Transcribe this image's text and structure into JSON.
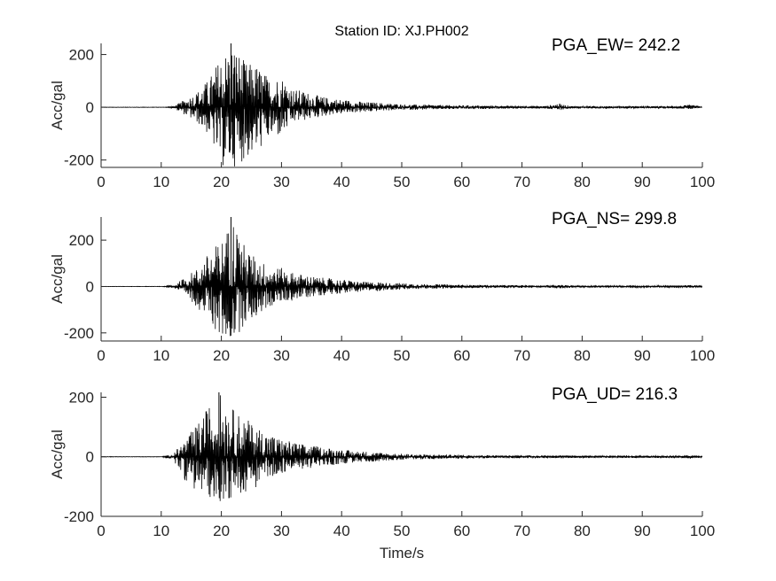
{
  "chart_data": {
    "type": "line",
    "title": "Station ID: XJ.PH002",
    "xlabel": "Time/s",
    "subplots": [
      {
        "annotation": "PGA_EW= 242.2",
        "ylabel": "Acc/gal",
        "xlim": [
          0,
          100
        ],
        "ylim": [
          -228,
          242.2
        ],
        "xticks": [
          0,
          10,
          20,
          30,
          40,
          50,
          60,
          70,
          80,
          90,
          100
        ],
        "yticks": [
          -200,
          0,
          200
        ],
        "time_s": [
          0,
          2,
          4,
          6,
          8,
          10,
          12,
          14,
          16,
          18,
          20,
          22,
          24,
          26,
          28,
          30,
          32,
          34,
          36,
          38,
          40,
          42,
          44,
          46,
          48,
          50,
          52,
          54,
          56,
          58,
          60,
          62,
          64,
          66,
          68,
          70,
          72,
          74,
          76,
          78,
          80,
          82,
          84,
          86,
          88,
          90,
          92,
          94,
          96,
          98,
          100
        ],
        "envelope_max": [
          0,
          0,
          0,
          0,
          0,
          0,
          3,
          30,
          60,
          110,
          200,
          242.2,
          170,
          160,
          110,
          120,
          70,
          60,
          45,
          35,
          30,
          25,
          20,
          18,
          15,
          12,
          10,
          10,
          9,
          8,
          8,
          7,
          7,
          6,
          6,
          6,
          5,
          5,
          15,
          5,
          4,
          4,
          4,
          4,
          4,
          4,
          4,
          4,
          4,
          10,
          3
        ],
        "envelope_min": [
          0,
          0,
          0,
          0,
          0,
          0,
          -3,
          -30,
          -60,
          -110,
          -228,
          -228,
          -200,
          -170,
          -120,
          -110,
          -60,
          -50,
          -40,
          -30,
          -25,
          -20,
          -20,
          -15,
          -12,
          -10,
          -10,
          -9,
          -8,
          -8,
          -7,
          -7,
          -6,
          -6,
          -6,
          -5,
          -5,
          -5,
          -12,
          -5,
          -4,
          -4,
          -4,
          -4,
          -4,
          -4,
          -4,
          -4,
          -4,
          -8,
          -3
        ]
      },
      {
        "annotation": "PGA_NS= 299.8",
        "ylabel": "Acc/gal",
        "xlim": [
          0,
          100
        ],
        "ylim": [
          -235,
          299.8
        ],
        "xticks": [
          0,
          10,
          20,
          30,
          40,
          50,
          60,
          70,
          80,
          90,
          100
        ],
        "yticks": [
          -200,
          0,
          200
        ],
        "time_s": [
          0,
          2,
          4,
          6,
          8,
          10,
          12,
          14,
          16,
          18,
          20,
          22,
          24,
          26,
          28,
          30,
          32,
          34,
          36,
          38,
          40,
          42,
          44,
          46,
          48,
          50,
          52,
          54,
          56,
          58,
          60,
          62,
          64,
          66,
          68,
          70,
          72,
          74,
          76,
          78,
          80,
          82,
          84,
          86,
          88,
          90,
          92,
          94,
          96,
          98,
          100
        ],
        "envelope_max": [
          0,
          0,
          0,
          0,
          0,
          0,
          5,
          40,
          80,
          150,
          200,
          299.8,
          170,
          120,
          90,
          80,
          60,
          50,
          40,
          35,
          30,
          25,
          20,
          20,
          15,
          15,
          12,
          10,
          10,
          9,
          8,
          7,
          7,
          6,
          6,
          6,
          5,
          5,
          10,
          5,
          4,
          4,
          4,
          4,
          4,
          4,
          4,
          4,
          4,
          8,
          3
        ],
        "envelope_min": [
          0,
          0,
          0,
          0,
          0,
          0,
          -5,
          -40,
          -90,
          -150,
          -235,
          -235,
          -160,
          -130,
          -90,
          -70,
          -60,
          -50,
          -40,
          -35,
          -30,
          -25,
          -20,
          -20,
          -15,
          -15,
          -12,
          -10,
          -10,
          -9,
          -8,
          -7,
          -7,
          -6,
          -6,
          -6,
          -5,
          -5,
          -10,
          -5,
          -4,
          -4,
          -4,
          -4,
          -4,
          -4,
          -4,
          -4,
          -4,
          -8,
          -3
        ]
      },
      {
        "annotation": "PGA_UD= 216.3",
        "ylabel": "Acc/gal",
        "xlim": [
          0,
          100
        ],
        "ylim": [
          -200,
          216.3
        ],
        "xticks": [
          0,
          10,
          20,
          30,
          40,
          50,
          60,
          70,
          80,
          90,
          100
        ],
        "yticks": [
          -200,
          0,
          200
        ],
        "time_s": [
          0,
          2,
          4,
          6,
          8,
          10,
          12,
          14,
          16,
          18,
          20,
          22,
          24,
          26,
          28,
          30,
          32,
          34,
          36,
          38,
          40,
          42,
          44,
          46,
          48,
          50,
          52,
          54,
          56,
          58,
          60,
          62,
          64,
          66,
          68,
          70,
          72,
          74,
          76,
          78,
          80,
          82,
          84,
          86,
          88,
          90,
          92,
          94,
          96,
          98,
          100
        ],
        "envelope_max": [
          0,
          0,
          0,
          0,
          0,
          0,
          10,
          60,
          110,
          175,
          216.3,
          160,
          130,
          100,
          80,
          60,
          50,
          40,
          35,
          30,
          25,
          20,
          18,
          15,
          12,
          10,
          9,
          8,
          8,
          7,
          7,
          6,
          6,
          5,
          5,
          5,
          5,
          5,
          6,
          4,
          4,
          4,
          4,
          4,
          4,
          4,
          4,
          4,
          4,
          5,
          3
        ],
        "envelope_min": [
          0,
          0,
          0,
          0,
          0,
          0,
          -10,
          -80,
          -120,
          -140,
          -150,
          -145,
          -120,
          -100,
          -70,
          -55,
          -45,
          -40,
          -35,
          -30,
          -25,
          -20,
          -18,
          -15,
          -12,
          -10,
          -9,
          -8,
          -8,
          -7,
          -7,
          -6,
          -6,
          -5,
          -5,
          -5,
          -5,
          -5,
          -6,
          -4,
          -4,
          -4,
          -4,
          -4,
          -4,
          -4,
          -4,
          -4,
          -4,
          -5,
          -3
        ]
      }
    ],
    "colors": {
      "trace": "#000000",
      "axis": "#262626"
    },
    "grid": false,
    "legend": "none"
  }
}
